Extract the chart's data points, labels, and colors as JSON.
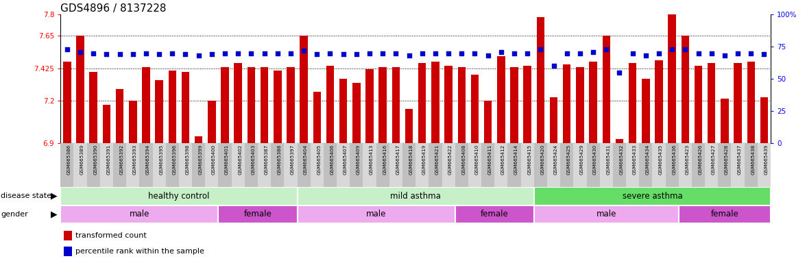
{
  "title": "GDS4896 / 8137228",
  "ylim": [
    6.9,
    7.8
  ],
  "yticks": [
    6.9,
    7.2,
    7.425,
    7.65,
    7.8
  ],
  "right_yticks": [
    0,
    25,
    50,
    75,
    100
  ],
  "right_ylabels": [
    "0",
    "25",
    "50",
    "75",
    "100%"
  ],
  "samples": [
    "GSM665386",
    "GSM665389",
    "GSM665390",
    "GSM665391",
    "GSM665392",
    "GSM665393",
    "GSM665394",
    "GSM665395",
    "GSM665396",
    "GSM665398",
    "GSM665399",
    "GSM665400",
    "GSM665401",
    "GSM665402",
    "GSM665403",
    "GSM665387",
    "GSM665388",
    "GSM665397",
    "GSM665404",
    "GSM665405",
    "GSM665406",
    "GSM665407",
    "GSM665409",
    "GSM665413",
    "GSM665416",
    "GSM665417",
    "GSM665418",
    "GSM665419",
    "GSM665421",
    "GSM665422",
    "GSM665408",
    "GSM665410",
    "GSM665411",
    "GSM665412",
    "GSM665414",
    "GSM665415",
    "GSM665420",
    "GSM665424",
    "GSM665425",
    "GSM665429",
    "GSM665430",
    "GSM665431",
    "GSM665432",
    "GSM665433",
    "GSM665434",
    "GSM665435",
    "GSM665436",
    "GSM665423",
    "GSM665426",
    "GSM665427",
    "GSM665428",
    "GSM665437",
    "GSM665438",
    "GSM665439"
  ],
  "bar_values": [
    7.47,
    7.65,
    7.4,
    7.17,
    7.28,
    7.2,
    7.43,
    7.34,
    7.41,
    7.4,
    6.95,
    7.2,
    7.43,
    7.46,
    7.43,
    7.43,
    7.41,
    7.43,
    7.65,
    7.26,
    7.44,
    7.35,
    7.32,
    7.42,
    7.43,
    7.43,
    7.14,
    7.46,
    7.47,
    7.44,
    7.43,
    7.38,
    7.2,
    7.51,
    7.43,
    7.44,
    7.78,
    7.22,
    7.45,
    7.43,
    7.47,
    7.65,
    6.93,
    7.46,
    7.35,
    7.48,
    7.8,
    7.65,
    7.44,
    7.46,
    7.21,
    7.46,
    7.47,
    7.22
  ],
  "percentile_values": [
    73,
    71,
    70,
    69,
    69,
    69,
    70,
    69,
    70,
    69,
    68,
    69,
    70,
    70,
    70,
    70,
    70,
    70,
    72,
    69,
    70,
    69,
    69,
    70,
    70,
    70,
    68,
    70,
    70,
    70,
    70,
    70,
    68,
    71,
    70,
    70,
    73,
    60,
    70,
    70,
    71,
    73,
    55,
    70,
    68,
    70,
    73,
    73,
    70,
    70,
    68,
    70,
    70,
    69
  ],
  "disease_state_groups": [
    {
      "label": "healthy control",
      "start": 0,
      "end": 18,
      "color": "#c8f0c8"
    },
    {
      "label": "mild asthma",
      "start": 18,
      "end": 36,
      "color": "#c8f0c8"
    },
    {
      "label": "severe asthma",
      "start": 36,
      "end": 54,
      "color": "#66dd66"
    }
  ],
  "gender_groups": [
    {
      "label": "male",
      "start": 0,
      "end": 12,
      "color": "#eeaaee"
    },
    {
      "label": "female",
      "start": 12,
      "end": 18,
      "color": "#cc55cc"
    },
    {
      "label": "male",
      "start": 18,
      "end": 30,
      "color": "#eeaaee"
    },
    {
      "label": "female",
      "start": 30,
      "end": 36,
      "color": "#cc55cc"
    },
    {
      "label": "male",
      "start": 36,
      "end": 47,
      "color": "#eeaaee"
    },
    {
      "label": "female",
      "start": 47,
      "end": 54,
      "color": "#cc55cc"
    }
  ],
  "bar_color": "#CC0000",
  "percentile_color": "#0000CC",
  "bar_width": 0.6,
  "tick_fontsize": 7.5,
  "label_fontsize": 8,
  "sample_fontsize": 5.2,
  "title_fontsize": 11
}
